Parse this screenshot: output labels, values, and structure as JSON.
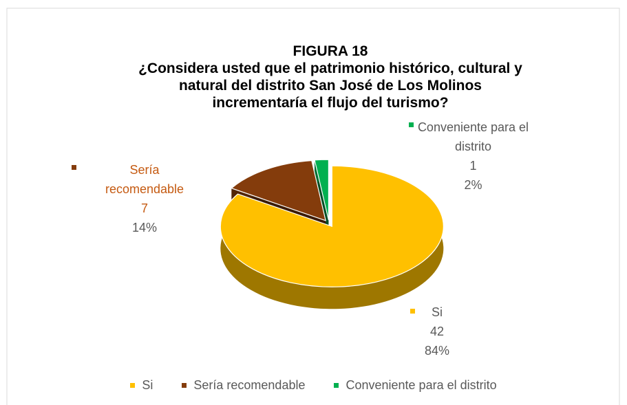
{
  "chart_data": {
    "type": "pie3d",
    "title": "FIGURA 18",
    "subtitle": [
      "¿Considera usted que el patrimonio histórico, cultural y",
      "natural del distrito San José de Los Molinos",
      "incrementaría el flujo del turismo?"
    ],
    "categories": [
      "Si",
      "Sería recomendable",
      "Conveniente para el distrito"
    ],
    "values": [
      42,
      7,
      1
    ],
    "percent_labels": [
      "84%",
      "14%",
      "2%"
    ],
    "colors": [
      "#ffc000",
      "#843c0c",
      "#00b050"
    ],
    "legend": "bottom"
  }
}
